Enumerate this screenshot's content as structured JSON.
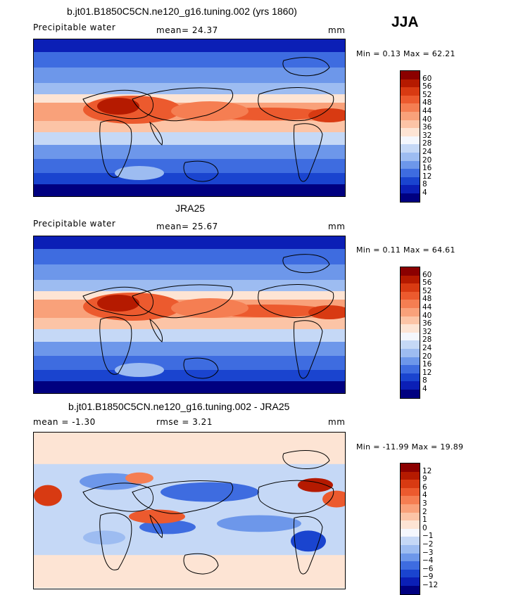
{
  "season": "JJA",
  "panels": [
    {
      "title": "b.jt01.B1850C5CN.ne120_g16.tuning.002 (yrs 1860)",
      "left_label": "Precipitable water",
      "center_label": "mean=  24.37",
      "right_label": "mm",
      "minmax": "Min =   0.13 Max =  62.21",
      "map_type": "absolute",
      "colorbar": {
        "levels": [
          "60",
          "56",
          "52",
          "48",
          "44",
          "40",
          "36",
          "32",
          "28",
          "24",
          "20",
          "16",
          "12",
          "8",
          "4"
        ],
        "colors": [
          "#8b0000",
          "#b51a00",
          "#d83a12",
          "#ec5a2e",
          "#f57e52",
          "#f9a17a",
          "#fcc4a6",
          "#fde4d4",
          "#f4f7fd",
          "#c5d8f6",
          "#9dbcf1",
          "#6d97ea",
          "#3e6ce0",
          "#1a44cf",
          "#0b1fb6",
          "#000080"
        ]
      }
    },
    {
      "title": "JRA25",
      "left_label": "Precipitable water",
      "center_label": "mean=  25.67",
      "right_label": "mm",
      "minmax": "Min =   0.11 Max =  64.61",
      "map_type": "absolute",
      "colorbar": {
        "levels": [
          "60",
          "56",
          "52",
          "48",
          "44",
          "40",
          "36",
          "32",
          "28",
          "24",
          "20",
          "16",
          "12",
          "8",
          "4"
        ],
        "colors": [
          "#8b0000",
          "#b51a00",
          "#d83a12",
          "#ec5a2e",
          "#f57e52",
          "#f9a17a",
          "#fcc4a6",
          "#fde4d4",
          "#f4f7fd",
          "#c5d8f6",
          "#9dbcf1",
          "#6d97ea",
          "#3e6ce0",
          "#1a44cf",
          "#0b1fb6",
          "#000080"
        ]
      }
    },
    {
      "title": "b.jt01.B1850C5CN.ne120_g16.tuning.002 - JRA25",
      "left_label": "mean =  -1.30",
      "center_label": "rmse =   3.21",
      "right_label": "mm",
      "minmax": "Min = -11.99 Max =  19.89",
      "map_type": "difference",
      "colorbar": {
        "levels": [
          "12",
          "9",
          "6",
          "4",
          "3",
          "2",
          "1",
          "0",
          "−1",
          "−2",
          "−3",
          "−4",
          "−6",
          "−9",
          "−12"
        ],
        "colors": [
          "#8b0000",
          "#b51a00",
          "#d83a12",
          "#ec5a2e",
          "#f57e52",
          "#f9a17a",
          "#fcc4a6",
          "#fde4d4",
          "#f4f7fd",
          "#c5d8f6",
          "#9dbcf1",
          "#6d97ea",
          "#3e6ce0",
          "#1a44cf",
          "#0b1fb6",
          "#000080"
        ]
      }
    }
  ]
}
